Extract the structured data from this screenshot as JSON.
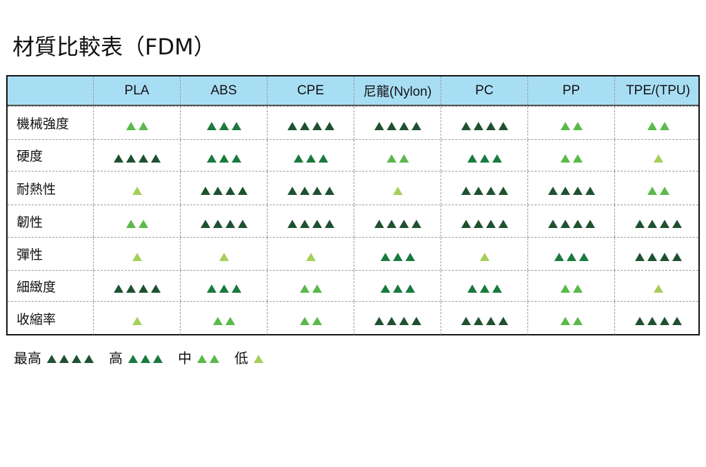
{
  "title": "材質比較表（FDM）",
  "colors": {
    "header_bg": "#a8def4",
    "level_4": "#1f5130",
    "level_3": "#1a7a3e",
    "level_2": "#5ab94a",
    "level_1": "#a6cf5a"
  },
  "icon": "triangle-icon",
  "table": {
    "columns": [
      "PLA",
      "ABS",
      "CPE",
      "尼龍(Nylon)",
      "PC",
      "PP",
      "TPE/(TPU)"
    ],
    "rows": [
      {
        "label": "機械強度",
        "ratings": [
          2,
          3,
          4,
          4,
          4,
          2,
          2
        ]
      },
      {
        "label": "硬度",
        "ratings": [
          4,
          3,
          3,
          2,
          3,
          2,
          1
        ]
      },
      {
        "label": "耐熱性",
        "ratings": [
          1,
          4,
          4,
          1,
          4,
          4,
          2
        ]
      },
      {
        "label": "韌性",
        "ratings": [
          2,
          4,
          4,
          4,
          4,
          4,
          4
        ]
      },
      {
        "label": "彈性",
        "ratings": [
          1,
          1,
          1,
          3,
          1,
          3,
          4
        ]
      },
      {
        "label": "細緻度",
        "ratings": [
          4,
          3,
          2,
          3,
          3,
          2,
          1
        ]
      },
      {
        "label": "收縮率",
        "ratings": [
          1,
          2,
          2,
          4,
          4,
          2,
          4
        ]
      }
    ]
  },
  "legend": [
    {
      "label": "最高",
      "level": 4
    },
    {
      "label": "高",
      "level": 3
    },
    {
      "label": "中",
      "level": 2
    },
    {
      "label": "低",
      "level": 1
    }
  ]
}
